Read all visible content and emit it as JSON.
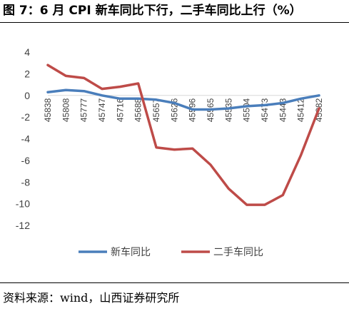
{
  "header": {
    "title": "图 7：6 月 CPI 新车同比下行，二手车同比上行（%）"
  },
  "footer": {
    "source": "资料来源：wind，山西证券研究所"
  },
  "colors": {
    "new_car": "#4a7ebb",
    "used_car": "#be4b48",
    "axis": "#d9d9d9",
    "tick_text": "#404040"
  },
  "chart_data": {
    "type": "line",
    "title": "",
    "xlabel": "",
    "ylabel": "",
    "ylim": [
      -12,
      4
    ],
    "yticks": [
      4,
      2,
      0,
      -2,
      -4,
      -6,
      -8,
      -10,
      -12
    ],
    "grid": false,
    "legend": "bottom",
    "categories": [
      "45838",
      "45808",
      "45777",
      "45747",
      "45716",
      "45688",
      "45657",
      "45626",
      "45596",
      "45565",
      "45535",
      "45504",
      "45473",
      "45443",
      "45412",
      "45382"
    ],
    "series": [
      {
        "name": "新车同比",
        "color": "#4a7ebb",
        "values": [
          0.3,
          0.5,
          0.4,
          0.0,
          -0.3,
          -0.3,
          -0.4,
          -0.7,
          -1.3,
          -1.3,
          -1.2,
          -1.0,
          -0.9,
          -0.7,
          -0.3,
          0.0
        ]
      },
      {
        "name": "二手车同比",
        "color": "#be4b48",
        "values": [
          2.8,
          1.8,
          1.6,
          0.6,
          0.8,
          1.1,
          -4.8,
          -5.0,
          -4.9,
          -6.4,
          -8.6,
          -10.1,
          -10.1,
          -9.2,
          -5.5,
          -1.2
        ]
      }
    ]
  }
}
